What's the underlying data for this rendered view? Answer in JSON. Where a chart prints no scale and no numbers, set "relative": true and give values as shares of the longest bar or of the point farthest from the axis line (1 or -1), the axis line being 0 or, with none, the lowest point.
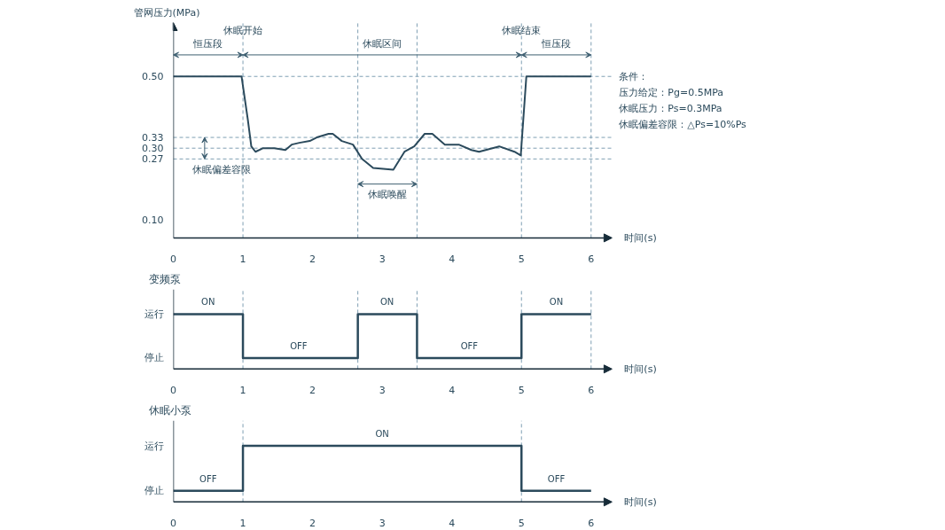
{
  "chart_data": [
    {
      "type": "line",
      "ylabel": "管网压力(MPa)",
      "xlabel": "时间(s)",
      "x": [
        0,
        0.98,
        1.07,
        1.12,
        1.18,
        1.29,
        1.45,
        1.61,
        1.7,
        1.81,
        1.96,
        2.06,
        2.23,
        2.29,
        2.42,
        2.58,
        2.71,
        2.87,
        3.16,
        3.32,
        3.46,
        3.61,
        3.72,
        3.9,
        4.1,
        4.28,
        4.39,
        4.68,
        4.9,
        4.99,
        5.07,
        6.0
      ],
      "series": [
        {
          "color": "#2b4a5c",
          "values": [
            0.5,
            0.5,
            0.38,
            0.305,
            0.29,
            0.3,
            0.3,
            0.295,
            0.31,
            0.315,
            0.32,
            0.33,
            0.34,
            0.34,
            0.32,
            0.31,
            0.27,
            0.245,
            0.24,
            0.29,
            0.305,
            0.34,
            0.34,
            0.31,
            0.31,
            0.295,
            0.29,
            0.305,
            0.29,
            0.28,
            0.5,
            0.5
          ]
        }
      ],
      "xlim": [
        0,
        6.3
      ],
      "ylim": [
        0.05,
        0.65
      ],
      "xticks": [
        0,
        1,
        2,
        3,
        4,
        5,
        6
      ],
      "yticks": [
        {
          "value": 0.1,
          "label": "0.10"
        },
        0.27,
        {
          "value": 0.3,
          "label": "0.30"
        },
        0.33,
        {
          "value": 0.5,
          "label": "0.50"
        }
      ],
      "ref_lines": [
        {
          "axis": "y",
          "value": 0.5,
          "line_style": "dashed"
        },
        {
          "axis": "y",
          "value": 0.33,
          "line_style": "dashed"
        },
        {
          "axis": "y",
          "value": 0.3,
          "line_style": "dashed"
        },
        {
          "axis": "y",
          "value": 0.27,
          "line_style": "dashed"
        },
        {
          "axis": "x",
          "value": 1,
          "label": "休眠开始",
          "line_style": "dashed"
        },
        {
          "axis": "x",
          "value": 2.65,
          "line_style": "dashed"
        },
        {
          "axis": "x",
          "value": 3.5,
          "line_style": "dashed"
        },
        {
          "axis": "x",
          "value": 5,
          "label": "休眠结束",
          "line_style": "dashed"
        },
        {
          "axis": "x",
          "value": 6,
          "line_style": "dashed"
        }
      ],
      "annotations": [
        "恒压段",
        "休眠区间",
        "恒压段",
        {
          "text": "休眠偏差容限",
          "x": 0.45,
          "y": 0.3
        },
        "休眠唤醒",
        "条件：",
        "压力给定：Pg=0.5MPa",
        "休眠压力：Ps=0.3MPa",
        "休眠偏差容限：△Ps=10%Ps"
      ],
      "grid": false,
      "marker": "none"
    },
    {
      "type": "step",
      "title": "变频泵",
      "xlabel": "时间(s)",
      "relative": true,
      "x": [
        0,
        1,
        2.65,
        3.5,
        5,
        6
      ],
      "series": [
        {
          "color": "#2b4a5c",
          "values": [
            1,
            0.2,
            1,
            0.2,
            1,
            1
          ]
        }
      ],
      "xlim": [
        0,
        6.3
      ],
      "xticks": [
        0,
        1,
        2,
        3,
        4,
        5,
        6
      ],
      "ref_lines": [
        {
          "axis": "x",
          "value": 1,
          "line_style": "dashed"
        },
        {
          "axis": "x",
          "value": 2.65,
          "line_style": "dashed"
        },
        {
          "axis": "x",
          "value": 3.5,
          "line_style": "dashed"
        },
        {
          "axis": "x",
          "value": 5,
          "line_style": "dashed"
        },
        {
          "axis": "x",
          "value": 6,
          "line_style": "dashed"
        }
      ],
      "annotations": [
        "运行",
        "停止",
        {
          "text": "ON",
          "x": 0.5,
          "y": 1
        },
        {
          "text": "OFF",
          "x": 1.8,
          "y": 0.2
        },
        {
          "text": "ON",
          "x": 3.07,
          "y": 1
        },
        {
          "text": "OFF",
          "x": 4.25,
          "y": 0.2
        },
        {
          "text": "ON",
          "x": 5.5,
          "y": 1
        }
      ],
      "grid": false,
      "marker": "none"
    },
    {
      "type": "step",
      "title": "休眠小泵",
      "xlabel": "时间(s)",
      "relative": true,
      "x": [
        0,
        1,
        5,
        6
      ],
      "series": [
        {
          "color": "#2b4a5c",
          "values": [
            0.2,
            1,
            0.2,
            0.2
          ]
        }
      ],
      "xlim": [
        0,
        6.3
      ],
      "xticks": [
        0,
        1,
        2,
        3,
        4,
        5,
        6
      ],
      "ref_lines": [
        {
          "axis": "x",
          "value": 1,
          "line_style": "dashed"
        },
        {
          "axis": "x",
          "value": 5,
          "line_style": "dashed"
        }
      ],
      "annotations": [
        "运行",
        "停止",
        {
          "text": "OFF",
          "x": 0.5,
          "y": 0.2
        },
        {
          "text": "ON",
          "x": 3,
          "y": 1
        },
        {
          "text": "OFF",
          "x": 5.5,
          "y": 0.2
        }
      ],
      "grid": false,
      "marker": "none"
    }
  ]
}
